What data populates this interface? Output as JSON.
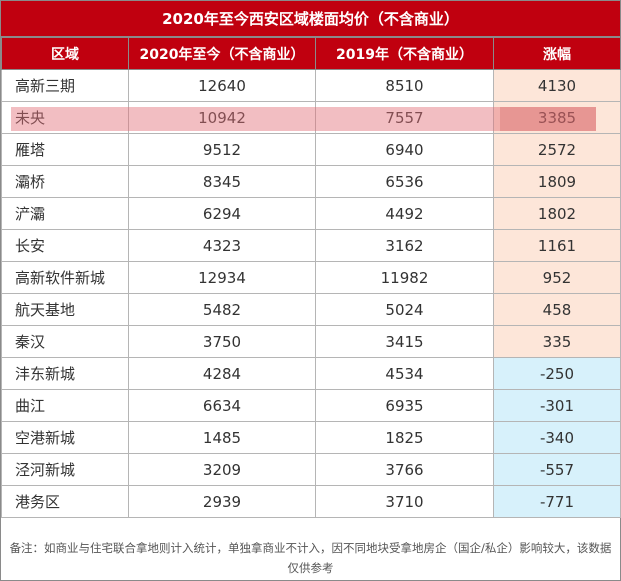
{
  "title": "2020年至今西安区域楼面均价（不含商业）",
  "headers": [
    "区域",
    "2020年至今（不含商业）",
    "2019年（不含商业）",
    "涨幅"
  ],
  "rows": [
    {
      "region": "高新三期",
      "price_2020": "12640",
      "price_2019": "8510",
      "change": "4130"
    },
    {
      "region": "未央",
      "price_2020": "10942",
      "price_2019": "7557",
      "change": "3385"
    },
    {
      "region": "雁塔",
      "price_2020": "9512",
      "price_2019": "6940",
      "change": "2572"
    },
    {
      "region": "灞桥",
      "price_2020": "8345",
      "price_2019": "6536",
      "change": "1809"
    },
    {
      "region": "浐灞",
      "price_2020": "6294",
      "price_2019": "4492",
      "change": "1802"
    },
    {
      "region": "长安",
      "price_2020": "4323",
      "price_2019": "3162",
      "change": "1161"
    },
    {
      "region": "高新软件新城",
      "price_2020": "12934",
      "price_2019": "11982",
      "change": "952"
    },
    {
      "region": "航天基地",
      "price_2020": "5482",
      "price_2019": "5024",
      "change": "458"
    },
    {
      "region": "秦汉",
      "price_2020": "3750",
      "price_2019": "3415",
      "change": "335"
    },
    {
      "region": "沣东新城",
      "price_2020": "4284",
      "price_2019": "4534",
      "change": "-250"
    },
    {
      "region": "曲江",
      "price_2020": "6634",
      "price_2019": "6935",
      "change": "-301"
    },
    {
      "region": "空港新城",
      "price_2020": "1485",
      "price_2019": "1825",
      "change": "-340"
    },
    {
      "region": "泾河新城",
      "price_2020": "3209",
      "price_2019": "3766",
      "change": "-557"
    },
    {
      "region": "港务区",
      "price_2020": "2939",
      "price_2019": "3710",
      "change": "-771"
    }
  ],
  "note": "备注：如商业与住宅联合拿地则计入统计，单独拿商业不计入，因不同地块受拿地房企（国企/私企）影响较大，该数据仅供参考",
  "colors": {
    "header_bg": "#c0000f",
    "positive_bg": "#fde6d9",
    "negative_bg": "#d7f1fb",
    "highlight": "#e26e78"
  },
  "highlighted_row": "未央"
}
